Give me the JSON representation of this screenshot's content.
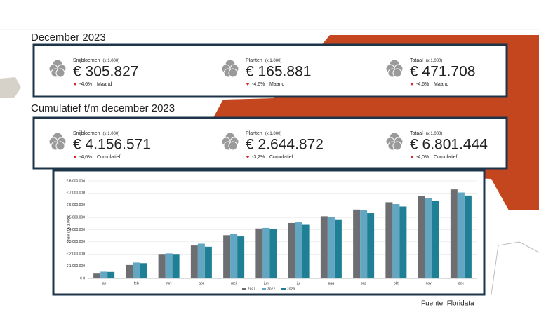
{
  "sections": [
    {
      "title": "December 2023",
      "cards": [
        {
          "label": "Snijbloemen",
          "unit": "(x 1.000)",
          "value": "€ 305.827",
          "change": "-4,6%",
          "period": "Maand"
        },
        {
          "label": "Planten",
          "unit": "(x 1.000)",
          "value": "€ 165.881",
          "change": "-4,6%",
          "period": "Maand"
        },
        {
          "label": "Totaal",
          "unit": "(x 1.000)",
          "value": "€ 471.708",
          "change": "-4,6%",
          "period": "Maand"
        }
      ]
    },
    {
      "title": "Cumulatief t/m december 2023",
      "cards": [
        {
          "label": "Snijbloemen",
          "unit": "(x 1.000)",
          "value": "€ 4.156.571",
          "change": "-4,6%",
          "period": "Cumulatief"
        },
        {
          "label": "Planten",
          "unit": "(x 1.000)",
          "value": "€ 2.644.872",
          "change": "-3,2%",
          "period": "Cumulatief"
        },
        {
          "label": "Totaal",
          "unit": "(x 1.000)",
          "value": "€ 6.801.444",
          "change": "-4,0%",
          "period": "Cumulatief"
        }
      ]
    }
  ],
  "chart_data": {
    "type": "bar",
    "ylabel": "omzet (x € 1.000)",
    "categories": [
      "jan",
      "feb",
      "mrt",
      "apr",
      "mei",
      "jun",
      "jul",
      "aug",
      "sep",
      "okt",
      "nov",
      "dec"
    ],
    "series": [
      {
        "name": "2021",
        "color": "#6d6e71",
        "values": [
          450000,
          1100000,
          2000000,
          2700000,
          3550000,
          4100000,
          4550000,
          5100000,
          5650000,
          6250000,
          6750000,
          7300000
        ]
      },
      {
        "name": "2022",
        "color": "#62a6c2",
        "values": [
          550000,
          1300000,
          2050000,
          2850000,
          3650000,
          4150000,
          4600000,
          5050000,
          5600000,
          6100000,
          6600000,
          7050000
        ]
      },
      {
        "name": "2023",
        "color": "#1f7f95",
        "values": [
          530000,
          1250000,
          2000000,
          2600000,
          3450000,
          4050000,
          4400000,
          4850000,
          5350000,
          5900000,
          6350000,
          6800000
        ]
      }
    ],
    "ylim": [
      0,
      8000000
    ],
    "yticks": [
      {
        "value": 0,
        "label": "€ 0"
      },
      {
        "value": 1000000,
        "label": "€ 1.000.000"
      },
      {
        "value": 2000000,
        "label": "€ 2.000.000"
      },
      {
        "value": 3000000,
        "label": "€ 3.000.000"
      },
      {
        "value": 4000000,
        "label": "€ 4.000.000"
      },
      {
        "value": 5000000,
        "label": "€ 5.000.000"
      },
      {
        "value": 6000000,
        "label": "€ 6.000.000"
      },
      {
        "value": 7000000,
        "label": "€ 7.000.000"
      },
      {
        "value": 8000000,
        "label": "€ 8.000.000"
      }
    ],
    "grid": true,
    "legend": "bottom"
  },
  "source": "Fuente: Floridata"
}
